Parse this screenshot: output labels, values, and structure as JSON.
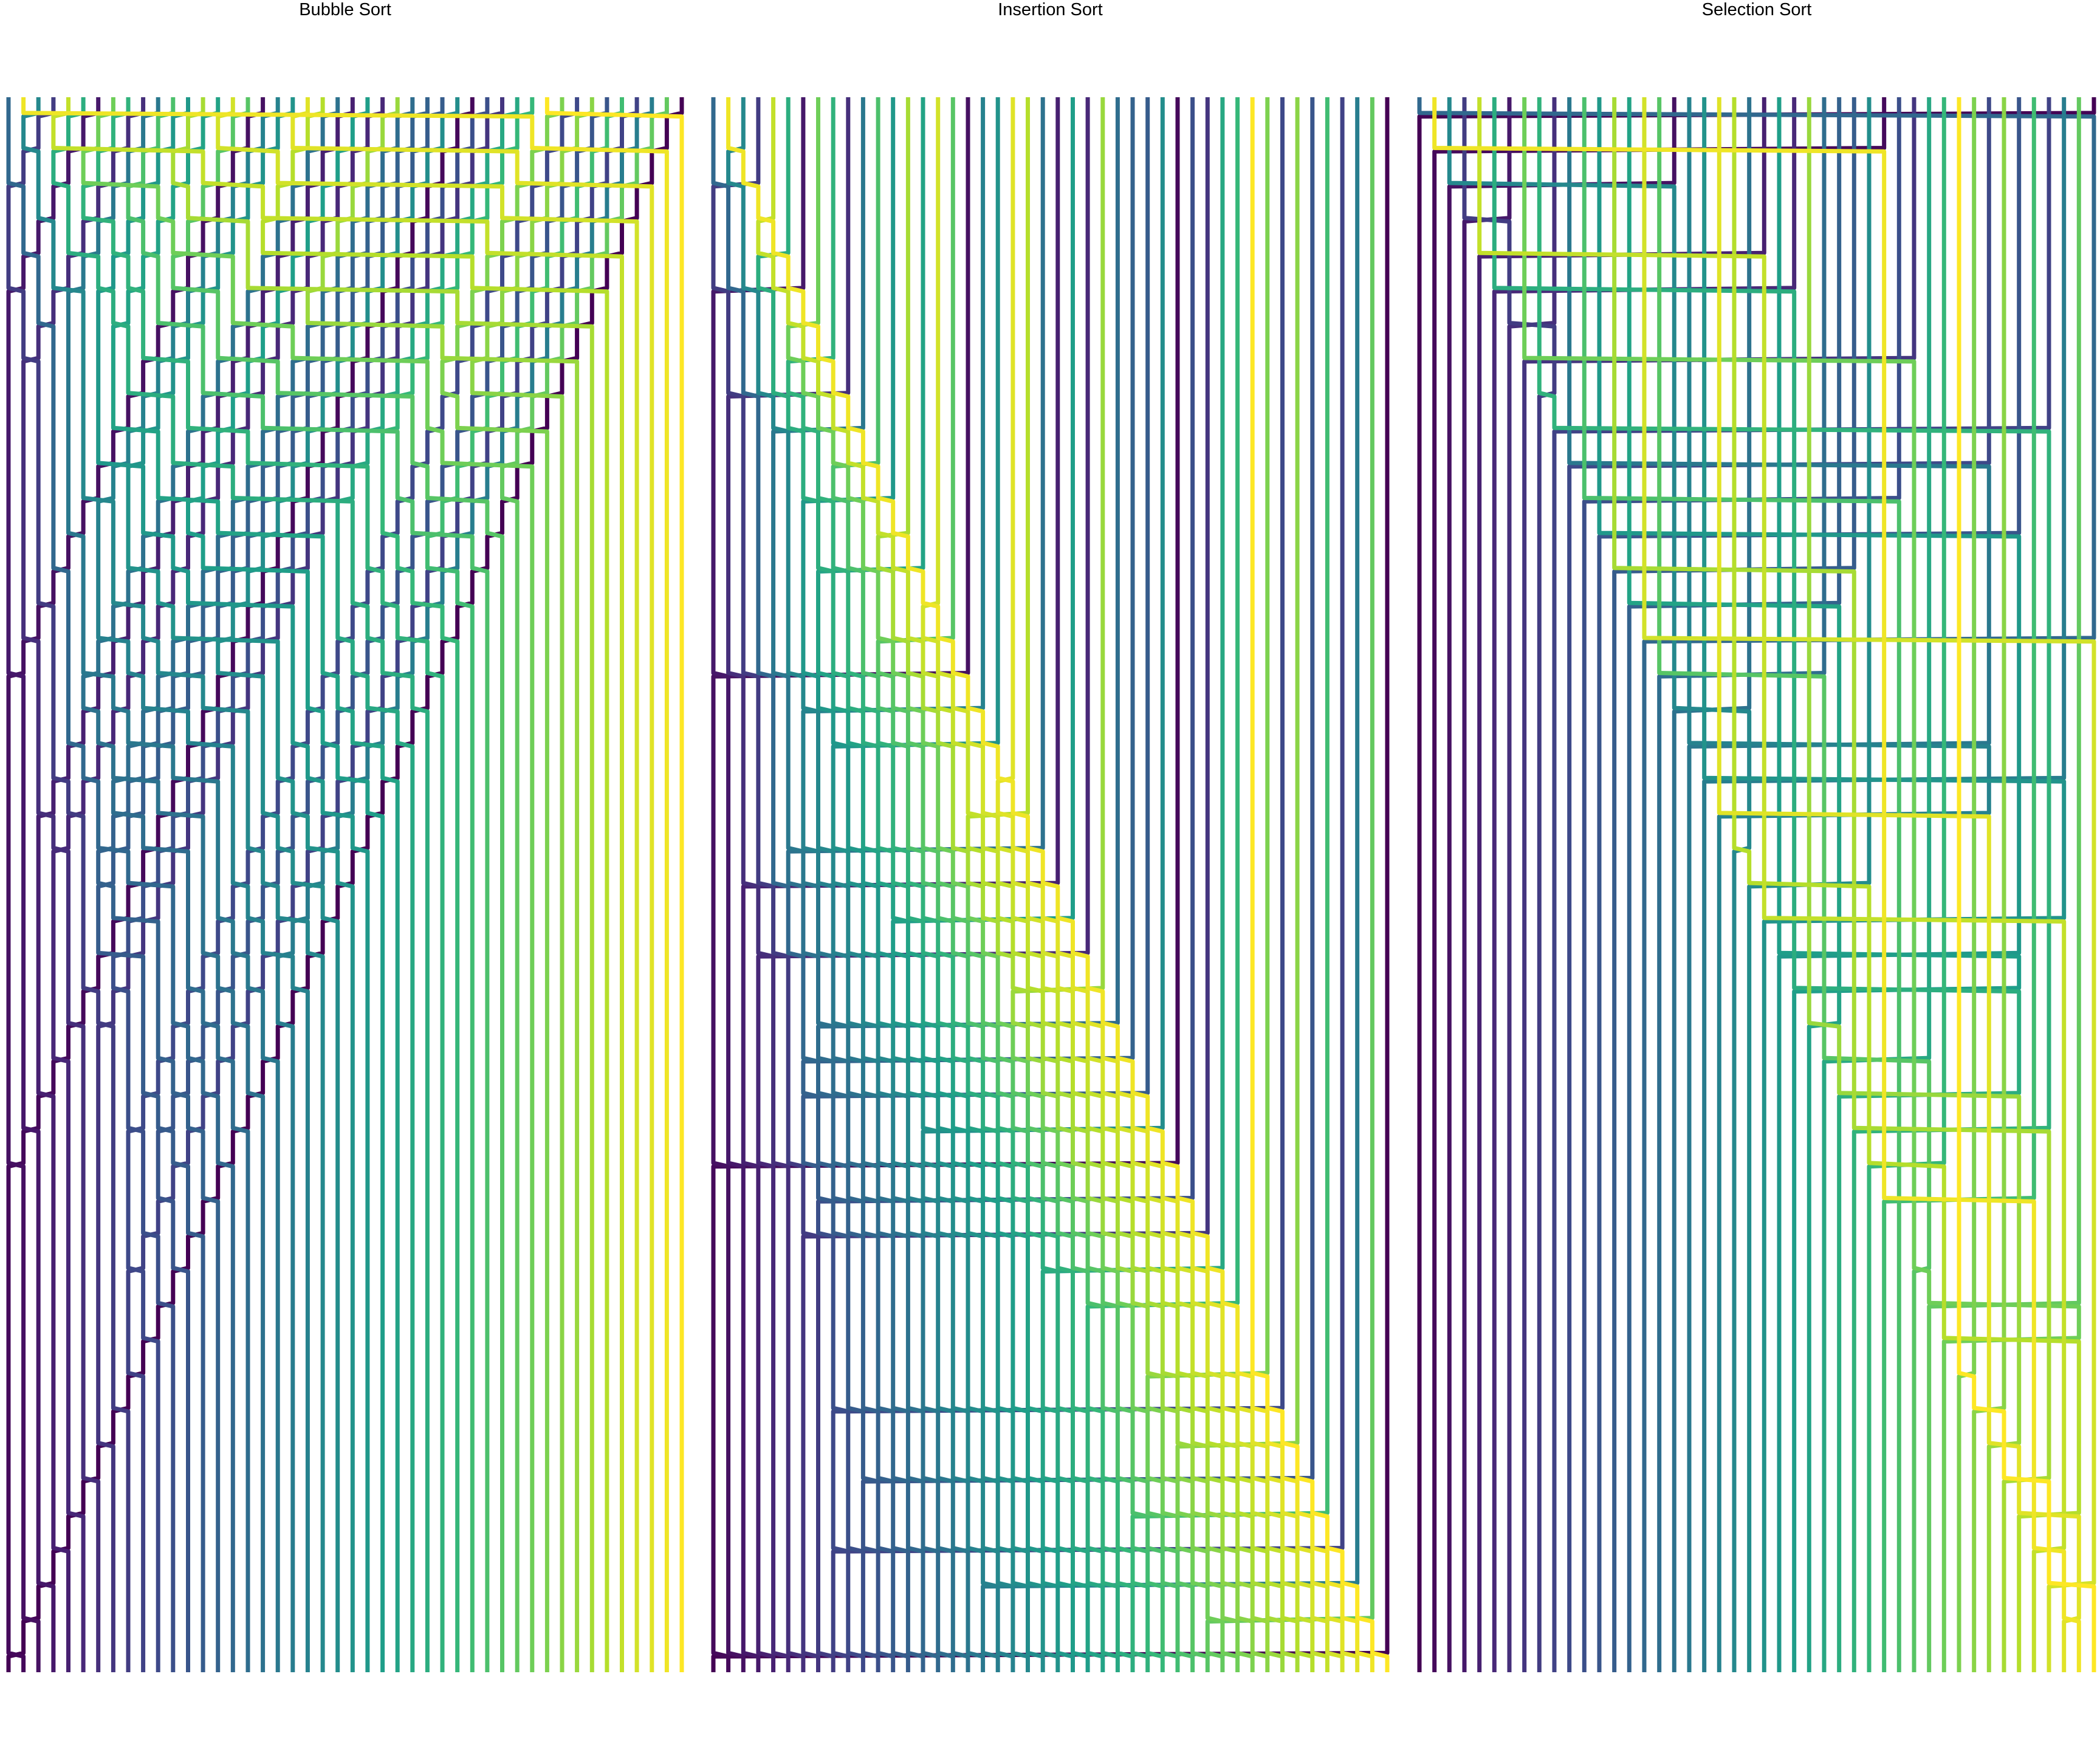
{
  "figure": {
    "panels": [
      {
        "id": "bubble",
        "title": "Bubble Sort",
        "algorithm": "bubble"
      },
      {
        "id": "insertion",
        "title": "Insertion Sort",
        "algorithm": "insertion"
      },
      {
        "id": "selection",
        "title": "Selection Sort",
        "algorithm": "selection"
      }
    ],
    "colormap": "viridis",
    "colormap_stops": [
      "#440154",
      "#482878",
      "#3e4989",
      "#31688e",
      "#26828e",
      "#1f9e89",
      "#35b779",
      "#6ece58",
      "#b5de2b",
      "#fde725"
    ],
    "background": "#ffffff"
  }
}
